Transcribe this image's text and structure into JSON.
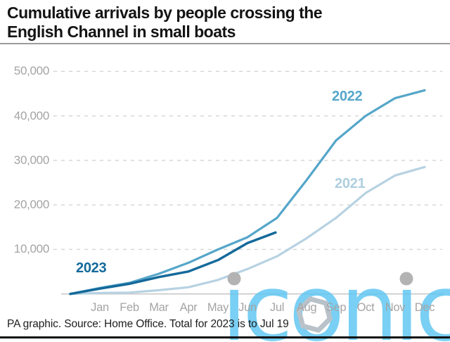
{
  "header": {
    "title": "Cumulative arrivals by people crossing the English Channel in small boats"
  },
  "footer": {
    "source_note": "PA graphic. Source: Home Office. Total for 2023 is to Jul 19"
  },
  "watermark": {
    "text": "iconic",
    "blue": "#5bc4f1",
    "gray": "#b3b3b3",
    "hexagon_gray": "#b9c2c9"
  },
  "chart_data": {
    "type": "line",
    "title": "Cumulative arrivals by people crossing the English Channel in small boats",
    "xlabel": "",
    "ylabel": "",
    "categories": [
      "Jan",
      "Feb",
      "Mar",
      "Apr",
      "May",
      "Jun",
      "Jul",
      "Aug",
      "Sep",
      "Oct",
      "Nov",
      "Dec"
    ],
    "yticks": [
      {
        "label": "10,000",
        "value": 10000
      },
      {
        "label": "20,000",
        "value": 20000
      },
      {
        "label": "30,000",
        "value": 30000
      },
      {
        "label": "40,000",
        "value": 40000
      },
      {
        "label": "50,000",
        "value": 50000
      }
    ],
    "ylim": [
      0,
      52000
    ],
    "grid": "dashed-horizontal",
    "legend_position": "inline-labels",
    "axis_label_color": "#a4a4a4",
    "grid_color": "#d4d4d4",
    "baseline_color": "#c9c9c9",
    "note": "2023 series plotted to Jul 19",
    "series": [
      {
        "name": "2021",
        "color": "#b7d2e2",
        "label_color": "#aecfe0",
        "points": [
          [
            0,
            0
          ],
          [
            1,
            223
          ],
          [
            2,
            308
          ],
          [
            3,
            831
          ],
          [
            4,
            1507
          ],
          [
            5,
            3140
          ],
          [
            6,
            5590
          ],
          [
            7,
            8452
          ],
          [
            8,
            12500
          ],
          [
            9,
            17085
          ],
          [
            10,
            22670
          ],
          [
            11,
            26628
          ],
          [
            12,
            28526
          ]
        ]
      },
      {
        "name": "2022",
        "color": "#55a6c9",
        "label_color": "#55a6c9",
        "points": [
          [
            0,
            0
          ],
          [
            1,
            1341
          ],
          [
            2,
            2483
          ],
          [
            3,
            4540
          ],
          [
            4,
            7011
          ],
          [
            5,
            9994
          ],
          [
            6,
            12747
          ],
          [
            7,
            17085
          ],
          [
            8,
            25560
          ],
          [
            9,
            34500
          ],
          [
            10,
            40000
          ],
          [
            11,
            44000
          ],
          [
            12,
            45755
          ]
        ]
      },
      {
        "name": "2023",
        "color": "#14699a",
        "label_color": "#14699a",
        "points": [
          [
            0,
            0
          ],
          [
            1,
            1180
          ],
          [
            2,
            2283
          ],
          [
            3,
            3793
          ],
          [
            4,
            5049
          ],
          [
            5,
            7610
          ],
          [
            6,
            11434
          ],
          [
            6.95,
            13800
          ]
        ]
      }
    ]
  }
}
